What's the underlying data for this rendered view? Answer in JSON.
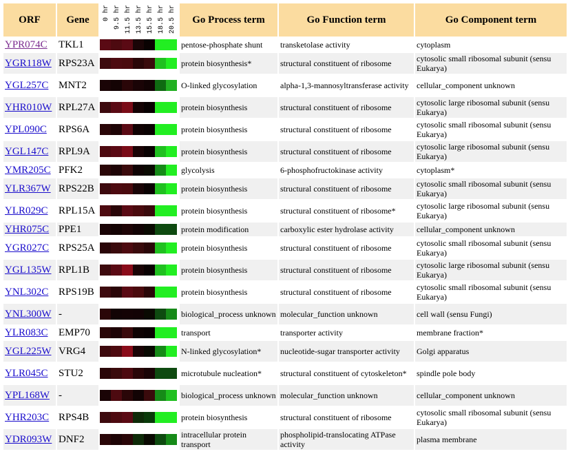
{
  "headers": {
    "orf": "ORF",
    "gene": "Gene",
    "timepoints": [
      "0 hr",
      "9.5 hr",
      "11.5 hr",
      "13.5 hr",
      "15.5 hr",
      "18.5 hr",
      "20.5 hr"
    ],
    "process": "Go Process term",
    "function": "Go Function term",
    "component": "Go Component term"
  },
  "rows": [
    {
      "orf": "YPR074C",
      "visited": true,
      "gene": "TKL1",
      "heat": [
        "#5a0a14",
        "#4d0a10",
        "#5a0a14",
        "#1a0507",
        "#0a0202",
        "#22ee22",
        "#22ee22"
      ],
      "process": "pentose-phosphate shunt",
      "function": "transketolase activity",
      "component": "cytoplasm",
      "tall": false
    },
    {
      "orf": "YGR118W",
      "gene": "RPS23A",
      "heat": [
        "#3d0a0e",
        "#4d0a10",
        "#4a0a0e",
        "#2a0608",
        "#3a0a0c",
        "#20c020",
        "#22ee22"
      ],
      "process": "protein biosynthesis*",
      "function": "structural constituent of ribosome",
      "component": "cytosolic small ribosomal subunit (sensu Eukarya)",
      "tall": true
    },
    {
      "orf": "YGL257C",
      "gene": "MNT2",
      "heat": [
        "#1a0406",
        "#140304",
        "#2a0608",
        "#1a0406",
        "#120304",
        "#0f6a12",
        "#22b022"
      ],
      "process": "O-linked glycosylation",
      "function": "alpha-1,3-mannosyltransferase activity",
      "component": "cellular_component unknown",
      "tall": true
    },
    {
      "orf": "YHR010W",
      "gene": "RPL27A",
      "heat": [
        "#3d0a0e",
        "#5a0a14",
        "#7a0c18",
        "#150304",
        "#080101",
        "#22ee22",
        "#22ee22"
      ],
      "process": "protein biosynthesis",
      "function": "structural constituent of ribosome",
      "component": "cytosolic large ribosomal subunit (sensu Eukarya)",
      "tall": true
    },
    {
      "orf": "YPL090C",
      "gene": "RPS6A",
      "heat": [
        "#2a0608",
        "#1e0406",
        "#5a0a14",
        "#100203",
        "#0a0202",
        "#22ee22",
        "#22ee22"
      ],
      "process": "protein biosynthesis",
      "function": "structural constituent of ribosome",
      "component": "cytosolic small ribosomal subunit (sensu Eukarya)",
      "tall": true
    },
    {
      "orf": "YGL147C",
      "gene": "RPL9A",
      "heat": [
        "#4d0a10",
        "#5a0a14",
        "#7a0c18",
        "#1a0406",
        "#0a0202",
        "#20c020",
        "#22ee22"
      ],
      "process": "protein biosynthesis",
      "function": "structural constituent of ribosome",
      "component": "cytosolic large ribosomal subunit (sensu Eukarya)",
      "tall": true
    },
    {
      "orf": "YMR205C",
      "gene": "PFK2",
      "heat": [
        "#2a0608",
        "#1e0406",
        "#3a0a0c",
        "#0f0303",
        "#0a0a02",
        "#168a18",
        "#22ee22"
      ],
      "process": "glycolysis",
      "function": "6-phosphofructokinase activity",
      "component": "cytoplasm*",
      "tall": false
    },
    {
      "orf": "YLR367W",
      "gene": "RPS22B",
      "heat": [
        "#3d0a0e",
        "#4d0a10",
        "#4a0a0e",
        "#1a0406",
        "#0a0202",
        "#20c020",
        "#22ee22"
      ],
      "process": "protein biosynthesis",
      "function": "structural constituent of ribosome",
      "component": "cytosolic small ribosomal subunit (sensu Eukarya)",
      "tall": true
    },
    {
      "orf": "YLR029C",
      "gene": "RPL15A",
      "heat": [
        "#4d0a10",
        "#2a0608",
        "#5a0a14",
        "#4a0a0e",
        "#3a0a0c",
        "#22ee22",
        "#22ee22"
      ],
      "process": "protein biosynthesis",
      "function": "structural constituent of ribosome*",
      "component": "cytosolic large ribosomal subunit (sensu Eukarya)",
      "tall": true
    },
    {
      "orf": "YHR075C",
      "gene": "PPE1",
      "heat": [
        "#1a0406",
        "#140304",
        "#1e0406",
        "#120304",
        "#0a0a02",
        "#0e4a10",
        "#0e4a10"
      ],
      "process": "protein modification",
      "function": "carboxylic ester hydrolase activity",
      "component": "cellular_component unknown",
      "tall": false
    },
    {
      "orf": "YGR027C",
      "gene": "RPS25A",
      "heat": [
        "#2a0608",
        "#3a0a0c",
        "#4d0a10",
        "#3a0a0c",
        "#2a0608",
        "#20c020",
        "#22ee22"
      ],
      "process": "protein biosynthesis",
      "function": "structural constituent of ribosome",
      "component": "cytosolic small ribosomal subunit (sensu Eukarya)",
      "tall": true
    },
    {
      "orf": "YGL135W",
      "gene": "RPL1B",
      "heat": [
        "#3d0a0e",
        "#5a0a14",
        "#8a0c1a",
        "#1a0406",
        "#0a0202",
        "#20c020",
        "#22ee22"
      ],
      "process": "protein biosynthesis",
      "function": "structural constituent of ribosome",
      "component": "cytosolic large ribosomal subunit (sensu Eukarya)",
      "tall": true
    },
    {
      "orf": "YNL302C",
      "gene": "RPS19B",
      "heat": [
        "#3d0a0e",
        "#2a0608",
        "#5a0a14",
        "#4a0a0e",
        "#2a0608",
        "#22ee22",
        "#22ee22"
      ],
      "process": "protein biosynthesis",
      "function": "structural constituent of ribosome",
      "component": "cytosolic small ribosomal subunit (sensu Eukarya)",
      "tall": true
    },
    {
      "orf": "YNL300W",
      "gene": "-",
      "heat": [
        "#2a0608",
        "#120304",
        "#140304",
        "#120304",
        "#0a0a02",
        "#0e4a10",
        "#168a18"
      ],
      "process": "biological_process unknown",
      "function": "molecular_function unknown",
      "component": "cell wall (sensu Fungi)",
      "tall": true
    },
    {
      "orf": "YLR083C",
      "gene": "EMP70",
      "heat": [
        "#2a0608",
        "#1e0406",
        "#3a0a0c",
        "#0f0303",
        "#0a0202",
        "#22ee22",
        "#22ee22"
      ],
      "process": "transport",
      "function": "transporter activity",
      "component": "membrane fraction*",
      "tall": false
    },
    {
      "orf": "YGL225W",
      "gene": "VRG4",
      "heat": [
        "#3d0a0e",
        "#4d0a10",
        "#8a0c1a",
        "#1a0406",
        "#0a0a02",
        "#168a18",
        "#22ee22"
      ],
      "process": "N-linked glycosylation*",
      "function": "nucleotide-sugar transporter activity",
      "component": "Golgi apparatus",
      "tall": true
    },
    {
      "orf": "YLR045C",
      "gene": "STU2",
      "heat": [
        "#2a0608",
        "#3a0a0c",
        "#4d0a10",
        "#2a0608",
        "#1a0406",
        "#0e4a10",
        "#0e4a10"
      ],
      "process": "microtubule nucleation*",
      "function": "structural constituent of cytoskeleton*",
      "component": "spindle pole body",
      "tall": true
    },
    {
      "orf": "YPL168W",
      "gene": "-",
      "heat": [
        "#1a0406",
        "#4d0a10",
        "#2a0608",
        "#120304",
        "#3a0a0c",
        "#168a18",
        "#20c020"
      ],
      "process": "biological_process unknown",
      "function": "molecular_function unknown",
      "component": "cellular_component unknown",
      "tall": true
    },
    {
      "orf": "YHR203C",
      "gene": "RPS4B",
      "heat": [
        "#3d0a0e",
        "#4d0a10",
        "#5a0a14",
        "#0e2a08",
        "#0a3a0a",
        "#22ee22",
        "#22ee22"
      ],
      "process": "protein biosynthesis",
      "function": "structural constituent of ribosome",
      "component": "cytosolic small ribosomal subunit (sensu Eukarya)",
      "tall": true
    },
    {
      "orf": "YDR093W",
      "gene": "DNF2",
      "heat": [
        "#2a0608",
        "#1e0406",
        "#2a0608",
        "#0e2a08",
        "#0a0a02",
        "#0e4a10",
        "#168a18"
      ],
      "process": "intracellular protein transport",
      "function": "phospholipid-translocating ATPase activity",
      "component": "plasma membrane",
      "tall": true
    }
  ]
}
